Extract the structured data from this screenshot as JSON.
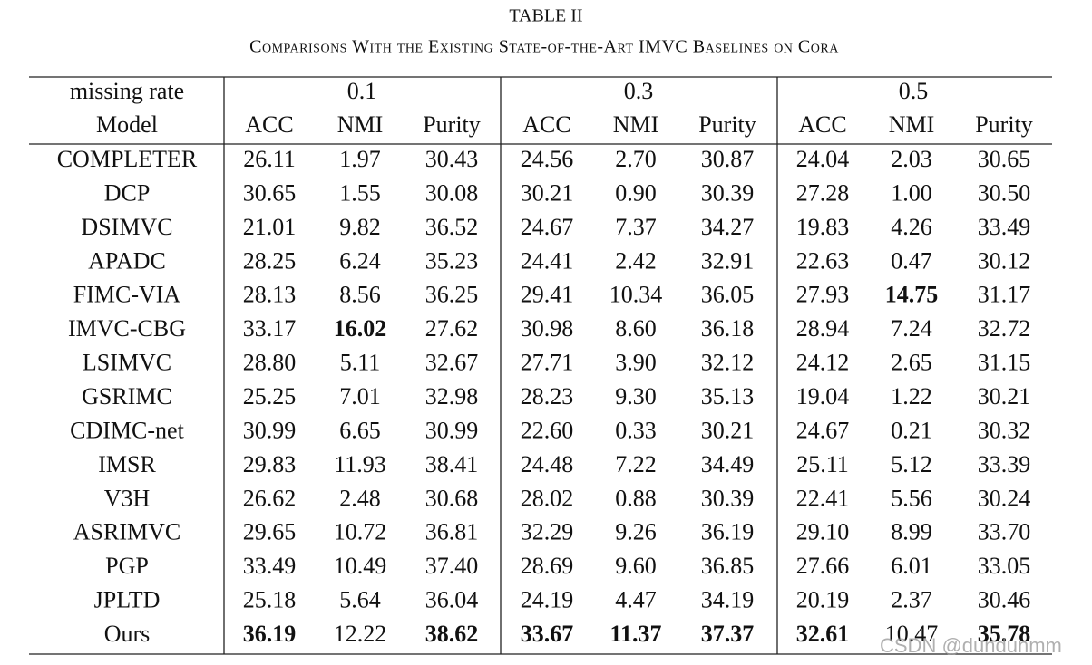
{
  "title": "TABLE II",
  "caption": "Comparisons With the Existing State-of-the-Art IMVC Baselines on Cora",
  "table": {
    "header": {
      "corner": "missing rate",
      "groups": [
        "0.1",
        "0.3",
        "0.5"
      ]
    },
    "subheader": [
      "Model",
      "ACC",
      "NMI",
      "Purity",
      "ACC",
      "NMI",
      "Purity",
      "ACC",
      "NMI",
      "Purity"
    ],
    "rows": [
      [
        "COMPLETER",
        "26.11",
        "1.97",
        "30.43",
        "24.56",
        "2.70",
        "30.87",
        "24.04",
        "2.03",
        "30.65"
      ],
      [
        "DCP",
        "30.65",
        "1.55",
        "30.08",
        "30.21",
        "0.90",
        "30.39",
        "27.28",
        "1.00",
        "30.50"
      ],
      [
        "DSIMVC",
        "21.01",
        "9.82",
        "36.52",
        "24.67",
        "7.37",
        "34.27",
        "19.83",
        "4.26",
        "33.49"
      ],
      [
        "APADC",
        "28.25",
        "6.24",
        "35.23",
        "24.41",
        "2.42",
        "32.91",
        "22.63",
        "0.47",
        "30.12"
      ],
      [
        "FIMC-VIA",
        "28.13",
        "8.56",
        "36.25",
        "29.41",
        "10.34",
        "36.05",
        "27.93",
        "14.75",
        "31.17"
      ],
      [
        "IMVC-CBG",
        "33.17",
        "16.02",
        "27.62",
        "30.98",
        "8.60",
        "36.18",
        "28.94",
        "7.24",
        "32.72"
      ],
      [
        "LSIMVC",
        "28.80",
        "5.11",
        "32.67",
        "27.71",
        "3.90",
        "32.12",
        "24.12",
        "2.65",
        "31.15"
      ],
      [
        "GSRIMC",
        "25.25",
        "7.01",
        "32.98",
        "28.23",
        "9.30",
        "35.13",
        "19.04",
        "1.22",
        "30.21"
      ],
      [
        "CDIMC-net",
        "30.99",
        "6.65",
        "30.99",
        "22.60",
        "0.33",
        "30.21",
        "24.67",
        "0.21",
        "30.32"
      ],
      [
        "IMSR",
        "29.83",
        "11.93",
        "38.41",
        "24.48",
        "7.22",
        "34.49",
        "25.11",
        "5.12",
        "33.39"
      ],
      [
        "V3H",
        "26.62",
        "2.48",
        "30.68",
        "28.02",
        "0.88",
        "30.39",
        "22.41",
        "5.56",
        "30.24"
      ],
      [
        "ASRIMVC",
        "29.65",
        "10.72",
        "36.81",
        "32.29",
        "9.26",
        "36.19",
        "29.10",
        "8.99",
        "33.70"
      ],
      [
        "PGP",
        "33.49",
        "10.49",
        "37.40",
        "28.69",
        "9.60",
        "36.85",
        "27.66",
        "6.01",
        "33.05"
      ],
      [
        "JPLTD",
        "25.18",
        "5.64",
        "36.04",
        "24.19",
        "4.47",
        "34.19",
        "20.19",
        "2.37",
        "30.46"
      ],
      [
        "Ours",
        "36.19",
        "12.22",
        "38.62",
        "33.67",
        "11.37",
        "37.37",
        "32.61",
        "10.47",
        "35.78"
      ]
    ]
  },
  "watermark": "CSDN @dundunmm"
}
